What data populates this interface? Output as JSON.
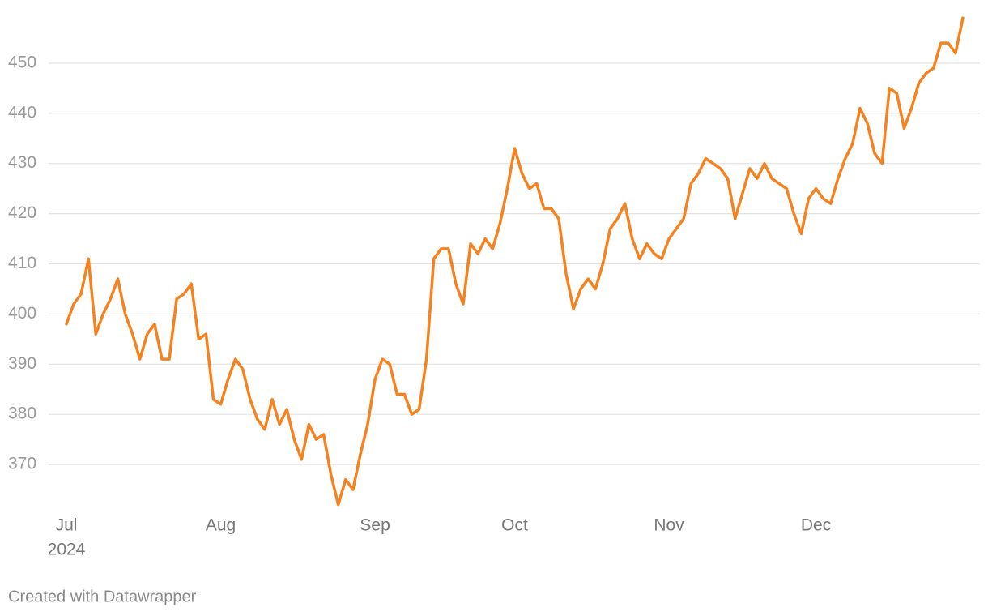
{
  "chart_data": {
    "type": "line",
    "categories": [
      "Jul",
      null,
      null,
      null,
      null,
      null,
      null,
      null,
      null,
      null,
      null,
      null,
      null,
      null,
      null,
      null,
      null,
      null,
      null,
      null,
      null,
      "Aug",
      null,
      null,
      null,
      null,
      null,
      null,
      null,
      null,
      null,
      null,
      null,
      null,
      null,
      null,
      null,
      null,
      null,
      null,
      null,
      null,
      "Sep",
      null,
      null,
      null,
      null,
      null,
      null,
      null,
      null,
      null,
      null,
      null,
      null,
      null,
      null,
      null,
      null,
      null,
      null,
      "Oct",
      null,
      null,
      null,
      null,
      null,
      null,
      null,
      null,
      null,
      null,
      null,
      null,
      null,
      null,
      null,
      null,
      null,
      null,
      null,
      null,
      "Nov",
      null,
      null,
      null,
      null,
      null,
      null,
      null,
      null,
      null,
      null,
      null,
      null,
      null,
      null,
      null,
      null,
      null,
      null,
      null,
      "Dec",
      null,
      null,
      null,
      null,
      null,
      null,
      null,
      null,
      null,
      null,
      null,
      null,
      null,
      null,
      null,
      null,
      null,
      null,
      null,
      null
    ],
    "year_label": "2024",
    "series": [
      {
        "color": "#f5821f",
        "values": [
          398,
          402,
          404,
          411,
          396,
          400,
          403,
          407,
          400,
          396,
          391,
          396,
          398,
          391,
          391,
          403,
          404,
          406,
          395,
          396,
          383,
          382,
          387,
          391,
          389,
          383,
          379,
          377,
          383,
          378,
          381,
          375,
          371,
          378,
          375,
          376,
          368,
          362,
          367,
          365,
          372,
          378,
          387,
          391,
          390,
          384,
          384,
          380,
          381,
          391,
          411,
          413,
          413,
          406,
          402,
          414,
          412,
          415,
          413,
          418,
          425,
          433,
          428,
          425,
          426,
          421,
          421,
          419,
          408,
          401,
          405,
          407,
          405,
          410,
          417,
          419,
          422,
          415,
          411,
          414,
          412,
          411,
          415,
          417,
          419,
          426,
          428,
          431,
          430,
          429,
          427,
          419,
          424,
          429,
          427,
          430,
          427,
          426,
          425,
          420,
          416,
          423,
          425,
          423,
          422,
          427,
          431,
          434,
          441,
          438,
          432,
          430,
          445,
          444,
          437,
          441,
          446,
          448,
          449,
          454,
          454,
          452,
          459
        ]
      }
    ],
    "ylim": [
      360,
      460
    ],
    "yticks": [
      370,
      380,
      390,
      400,
      410,
      420,
      430,
      440,
      450
    ],
    "grid": true,
    "footer": "Created with Datawrapper"
  }
}
